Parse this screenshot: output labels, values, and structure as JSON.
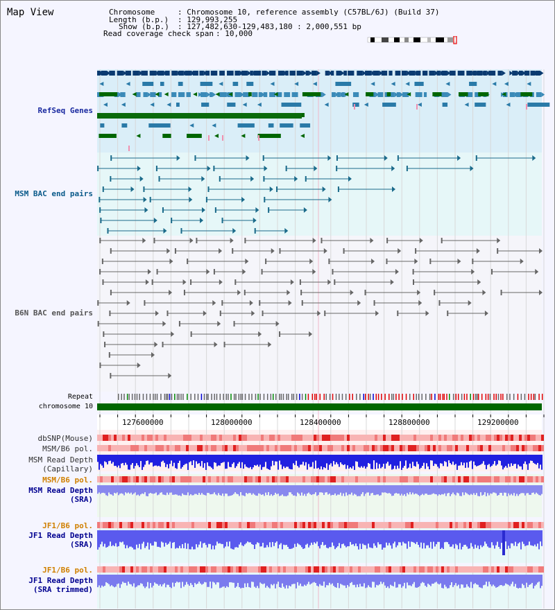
{
  "header": {
    "title": "Map View",
    "chromosome_label": "Chromosome",
    "chromosome_value": ": Chromosome 10, reference assembly (C57BL/6J) (Build 37)",
    "length_label": "Length (b.p.)",
    "length_value": ": 129,993,255",
    "show_label": "Show (b.p.)",
    "show_value": ": 127,482,630-129,483,180 : 2,000,551 bp",
    "coverage_label": "Read coverage check span",
    "coverage_value": ": 10,000"
  },
  "tracks": {
    "refseq": "RefSeq Genes",
    "msm_bac": "MSM BAC end pairs",
    "b6n_bac": "B6N BAC end pairs",
    "repeat": "Repeat",
    "chromosome": "chromosome 10",
    "dbsnp": "dbSNP(Mouse)",
    "msm_pol1": "MSM/B6 pol.",
    "msm_depth_cap_1": "MSM Read Depth",
    "msm_depth_cap_2": "(Capillary)",
    "msm_pol2": "MSM/B6 pol.",
    "msm_depth_sra_1": "MSM Read Depth",
    "msm_depth_sra_2": "(SRA)",
    "jf1_pol1": "JF1/B6 pol.",
    "jf1_depth_sra_1": "JF1 Read Depth",
    "jf1_depth_sra_2": "(SRA)",
    "jf1_pol2": "JF1/B6 pol.",
    "jf1_depth_trim_1": "JF1 Read Depth",
    "jf1_depth_trim_2": "(SRA trimmed)"
  },
  "axis": {
    "ticks": [
      "127600000",
      "128000000",
      "128400000",
      "128800000",
      "129200000"
    ]
  },
  "colors": {
    "refseq_bg": "#daeef8",
    "msm_bg": "#e6f7f8",
    "b6n_bg": "#f5f5fa",
    "chromosome_bar": "#006600",
    "depth_blue": "#2a2ae0",
    "pol_red": "#e03030"
  }
}
